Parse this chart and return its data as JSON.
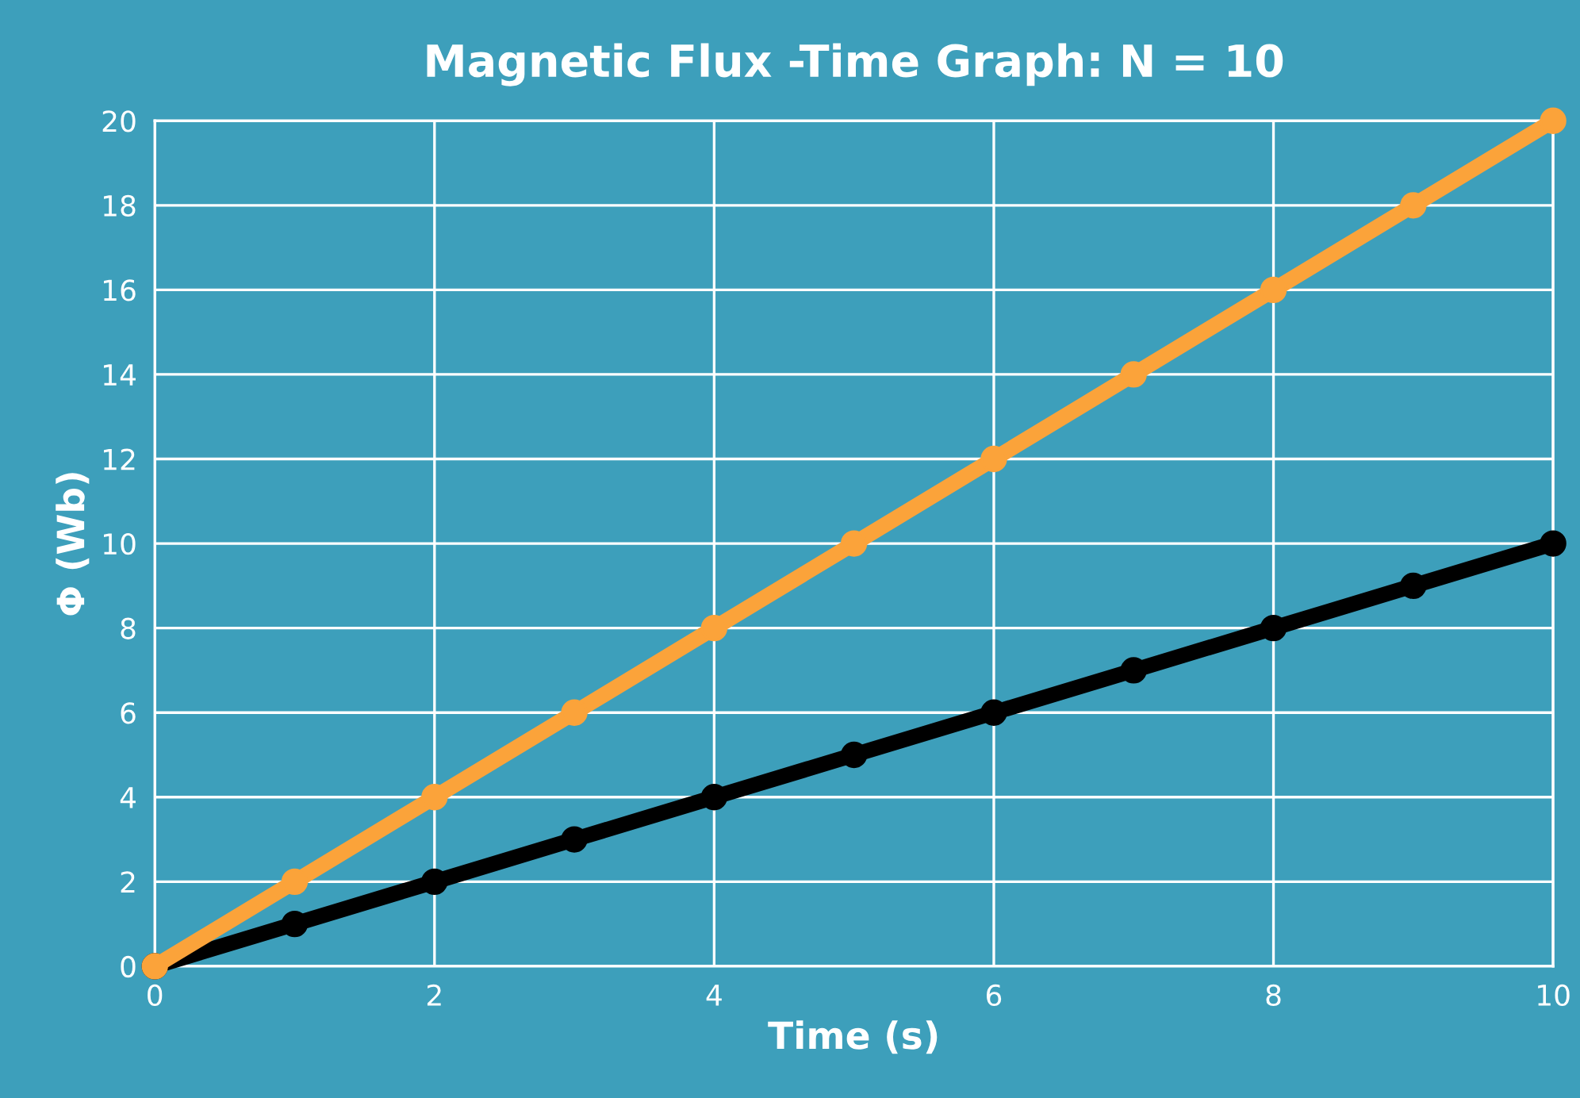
{
  "chart_data": {
    "type": "line",
    "title": "Magnetic Flux -Time Graph: N = 10",
    "xlabel": "Time (s)",
    "ylabel": "Φ (Wb)",
    "x": [
      0,
      1,
      2,
      3,
      4,
      5,
      6,
      7,
      8,
      9,
      10
    ],
    "series": [
      {
        "color": "#fba33a",
        "values": [
          0,
          2,
          4,
          6,
          8,
          10,
          12,
          14,
          16,
          18,
          20
        ]
      },
      {
        "color": "#000000",
        "values": [
          0,
          1,
          2,
          3,
          4,
          5,
          6,
          7,
          8,
          9,
          10
        ]
      }
    ],
    "xlim": [
      0,
      10
    ],
    "xticks": [
      0,
      2,
      4,
      6,
      8,
      10
    ],
    "ylim": [
      0,
      20
    ],
    "yticks": [
      0,
      2,
      4,
      6,
      8,
      10,
      12,
      14,
      16,
      18,
      20
    ],
    "grid": true,
    "marker": "circle",
    "line_style": "solid"
  }
}
